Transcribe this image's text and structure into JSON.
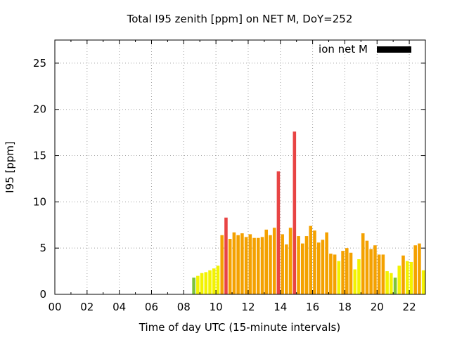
{
  "chart_data": {
    "type": "bar",
    "title": "Total I95 zenith [ppm] on NET M, DoY=252",
    "xlabel": "Time of day UTC (15-minute intervals)",
    "ylabel": "I95 [ppm]",
    "xlim": [
      0,
      23
    ],
    "ylim": [
      0,
      27.5
    ],
    "x_ticks": [
      "00",
      "02",
      "04",
      "06",
      "08",
      "10",
      "12",
      "14",
      "16",
      "18",
      "20",
      "22"
    ],
    "y_ticks": [
      "0",
      "5",
      "10",
      "15",
      "20",
      "25"
    ],
    "grid": true,
    "legend": {
      "label": "ion net M",
      "placement": "top-right",
      "color": "#000000"
    },
    "bar_width_hours": 0.2,
    "colors": {
      "green": "#7dc33b",
      "yellow": "#f3f300",
      "orange": "#f4a100",
      "red": "#e84444"
    },
    "bars": [
      {
        "x": 8.5,
        "value": 1.8,
        "color": "green"
      },
      {
        "x": 8.75,
        "value": 2.0,
        "color": "yellow"
      },
      {
        "x": 9.0,
        "value": 2.3,
        "color": "yellow"
      },
      {
        "x": 9.25,
        "value": 2.4,
        "color": "yellow"
      },
      {
        "x": 9.5,
        "value": 2.6,
        "color": "yellow"
      },
      {
        "x": 9.75,
        "value": 2.8,
        "color": "yellow"
      },
      {
        "x": 10.0,
        "value": 3.1,
        "color": "yellow"
      },
      {
        "x": 10.25,
        "value": 6.4,
        "color": "orange"
      },
      {
        "x": 10.5,
        "value": 8.3,
        "color": "red"
      },
      {
        "x": 10.75,
        "value": 6.0,
        "color": "orange"
      },
      {
        "x": 11.0,
        "value": 6.7,
        "color": "orange"
      },
      {
        "x": 11.25,
        "value": 6.4,
        "color": "orange"
      },
      {
        "x": 11.5,
        "value": 6.6,
        "color": "orange"
      },
      {
        "x": 11.75,
        "value": 6.2,
        "color": "orange"
      },
      {
        "x": 12.0,
        "value": 6.5,
        "color": "orange"
      },
      {
        "x": 12.25,
        "value": 6.1,
        "color": "orange"
      },
      {
        "x": 12.5,
        "value": 6.1,
        "color": "orange"
      },
      {
        "x": 12.75,
        "value": 6.2,
        "color": "orange"
      },
      {
        "x": 13.0,
        "value": 7.0,
        "color": "orange"
      },
      {
        "x": 13.25,
        "value": 6.4,
        "color": "orange"
      },
      {
        "x": 13.5,
        "value": 7.2,
        "color": "orange"
      },
      {
        "x": 13.75,
        "value": 13.3,
        "color": "red"
      },
      {
        "x": 14.0,
        "value": 6.5,
        "color": "orange"
      },
      {
        "x": 14.25,
        "value": 5.4,
        "color": "orange"
      },
      {
        "x": 14.5,
        "value": 7.2,
        "color": "orange"
      },
      {
        "x": 14.75,
        "value": 17.6,
        "color": "red"
      },
      {
        "x": 15.0,
        "value": 6.3,
        "color": "orange"
      },
      {
        "x": 15.25,
        "value": 5.5,
        "color": "orange"
      },
      {
        "x": 15.5,
        "value": 6.3,
        "color": "orange"
      },
      {
        "x": 15.75,
        "value": 7.4,
        "color": "orange"
      },
      {
        "x": 16.0,
        "value": 6.9,
        "color": "orange"
      },
      {
        "x": 16.25,
        "value": 5.6,
        "color": "orange"
      },
      {
        "x": 16.5,
        "value": 5.9,
        "color": "orange"
      },
      {
        "x": 16.75,
        "value": 6.7,
        "color": "orange"
      },
      {
        "x": 17.0,
        "value": 4.4,
        "color": "orange"
      },
      {
        "x": 17.25,
        "value": 4.3,
        "color": "orange"
      },
      {
        "x": 17.5,
        "value": 3.6,
        "color": "yellow"
      },
      {
        "x": 17.75,
        "value": 4.7,
        "color": "orange"
      },
      {
        "x": 18.0,
        "value": 5.0,
        "color": "orange"
      },
      {
        "x": 18.25,
        "value": 4.5,
        "color": "orange"
      },
      {
        "x": 18.5,
        "value": 2.7,
        "color": "yellow"
      },
      {
        "x": 18.75,
        "value": 3.8,
        "color": "yellow"
      },
      {
        "x": 19.0,
        "value": 6.6,
        "color": "orange"
      },
      {
        "x": 19.25,
        "value": 5.8,
        "color": "orange"
      },
      {
        "x": 19.5,
        "value": 4.9,
        "color": "orange"
      },
      {
        "x": 19.75,
        "value": 5.3,
        "color": "orange"
      },
      {
        "x": 20.0,
        "value": 4.3,
        "color": "orange"
      },
      {
        "x": 20.25,
        "value": 4.3,
        "color": "orange"
      },
      {
        "x": 20.5,
        "value": 2.5,
        "color": "yellow"
      },
      {
        "x": 20.75,
        "value": 2.3,
        "color": "yellow"
      },
      {
        "x": 21.0,
        "value": 1.8,
        "color": "green"
      },
      {
        "x": 21.25,
        "value": 3.1,
        "color": "yellow"
      },
      {
        "x": 21.5,
        "value": 4.2,
        "color": "orange"
      },
      {
        "x": 21.75,
        "value": 3.6,
        "color": "yellow"
      },
      {
        "x": 22.0,
        "value": 3.5,
        "color": "yellow"
      },
      {
        "x": 22.25,
        "value": 5.3,
        "color": "orange"
      },
      {
        "x": 22.5,
        "value": 5.5,
        "color": "orange"
      },
      {
        "x": 22.75,
        "value": 2.6,
        "color": "yellow"
      }
    ]
  }
}
